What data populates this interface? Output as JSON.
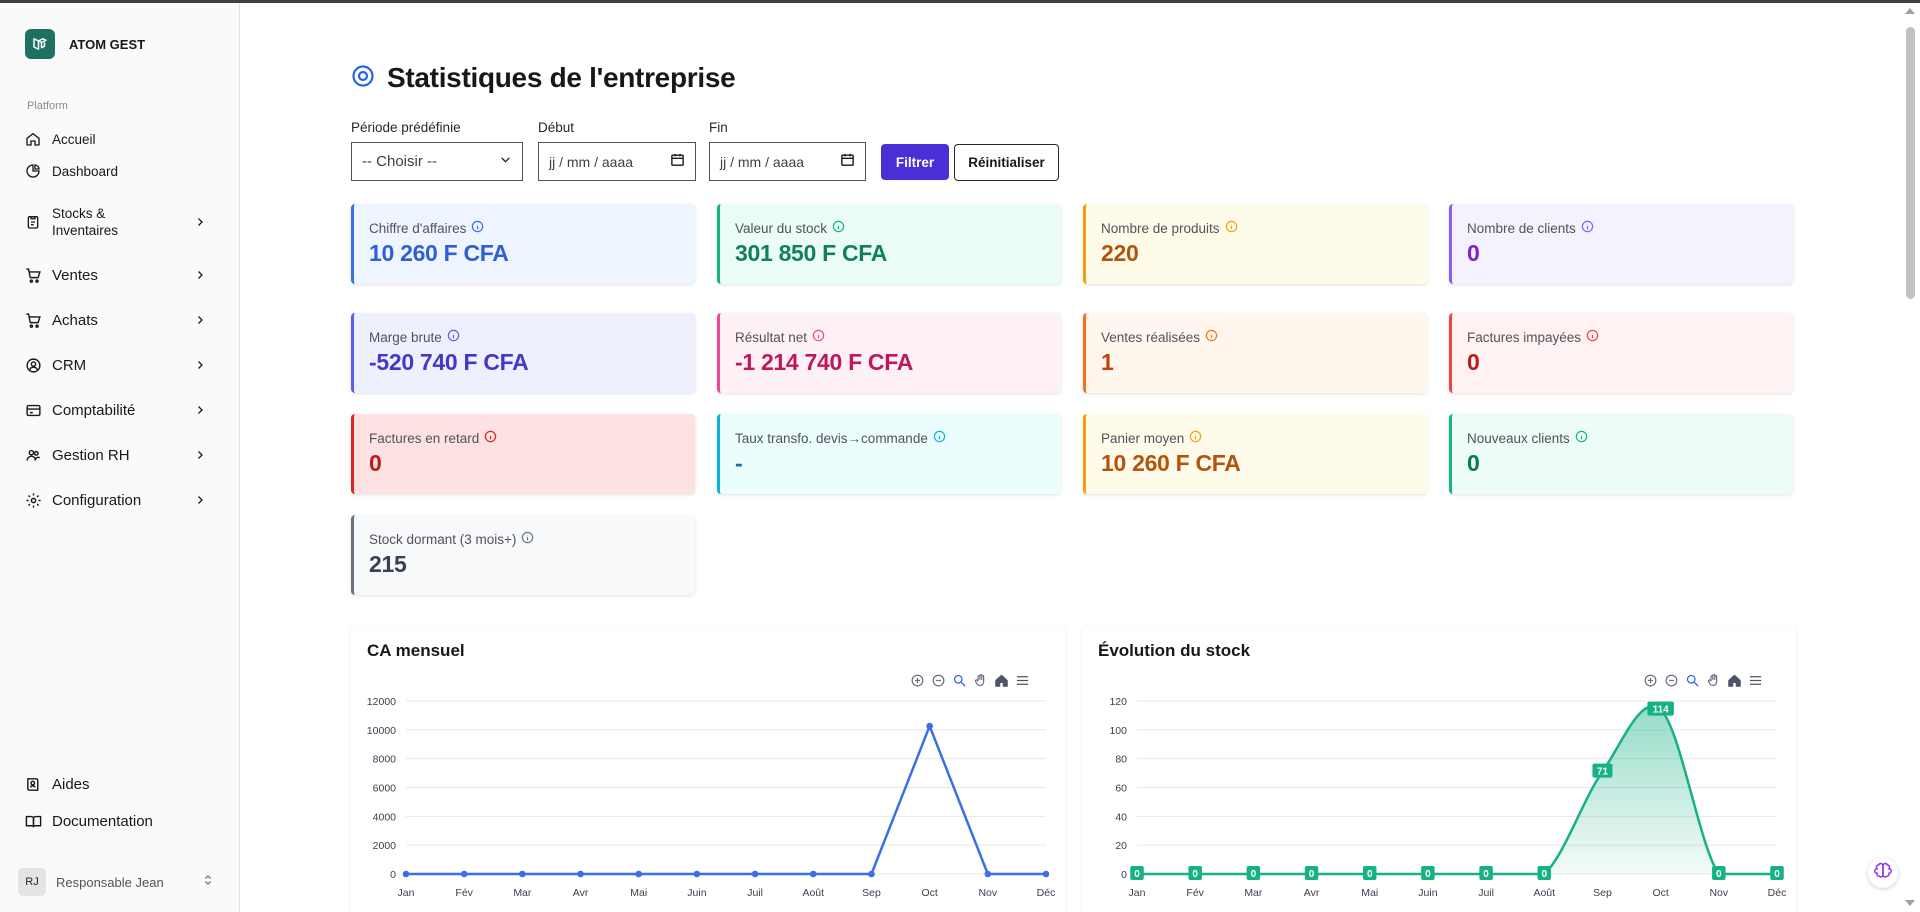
{
  "app": {
    "name": "ATOM GEST"
  },
  "sidebar": {
    "section": "Platform",
    "items": [
      {
        "label": "Accueil",
        "icon": "home-icon"
      },
      {
        "label": "Dashboard",
        "icon": "pie-chart-icon"
      },
      {
        "label": "Stocks &\nInventaires",
        "icon": "clipboard-icon"
      },
      {
        "label": "Ventes",
        "icon": "cart-icon"
      },
      {
        "label": "Achats",
        "icon": "cart-icon"
      },
      {
        "label": "CRM",
        "icon": "user-circle-icon"
      },
      {
        "label": "Comptabilité",
        "icon": "credit-card-icon"
      },
      {
        "label": "Gestion RH",
        "icon": "users-icon"
      },
      {
        "label": "Configuration",
        "icon": "gear-icon"
      }
    ],
    "bottom_items": [
      {
        "label": "Aides",
        "icon": "book-user-icon"
      },
      {
        "label": "Documentation",
        "icon": "open-book-icon"
      }
    ],
    "user": {
      "initials": "RJ",
      "name": "Responsable Jean"
    }
  },
  "page": {
    "title": "Statistiques de l'entreprise"
  },
  "filters": {
    "period_label": "Période prédéfinie",
    "period_value": "-- Choisir --",
    "start_label": "Début",
    "start_placeholder": "jj / mm / aaaa",
    "end_label": "Fin",
    "end_placeholder": "jj / mm / aaaa",
    "filter_button": "Filtrer",
    "reset_button": "Réinitialiser"
  },
  "stats": [
    {
      "label": "Chiffre d'affaires",
      "value": "10 260 F CFA",
      "bg": "#eef5ff",
      "accent": "#3b6ee8",
      "text": "#2f5fd6"
    },
    {
      "label": "Valeur du stock",
      "value": "301 850 F CFA",
      "bg": "#eafcf3",
      "accent": "#16b184",
      "text": "#13805c"
    },
    {
      "label": "Nombre de produits",
      "value": "220",
      "bg": "#fefbe9",
      "accent": "#f59e0b",
      "text": "#b45309"
    },
    {
      "label": "Nombre de clients",
      "value": "0",
      "bg": "#f3f2fd",
      "accent": "#8b5cf6",
      "text": "#7e22ce"
    },
    {
      "label": "Marge brute",
      "value": "-520 740 F CFA",
      "bg": "#eef1fd",
      "accent": "#5b5ee8",
      "text": "#4338ca"
    },
    {
      "label": "Résultat net",
      "value": "-1 214 740 F CFA",
      "bg": "#fdf1f6",
      "accent": "#ec4899",
      "text": "#be185d"
    },
    {
      "label": "Ventes réalisées",
      "value": "1",
      "bg": "#fff6ee",
      "accent": "#f97316",
      "text": "#c2410c"
    },
    {
      "label": "Factures impayées",
      "value": "0",
      "bg": "#fef2f2",
      "accent": "#ef4444",
      "text": "#b91c1c"
    },
    {
      "label": "Factures en retard",
      "value": "0",
      "bg": "#fee2e2",
      "accent": "#dc2626",
      "text": "#b91c1c"
    },
    {
      "label": "Taux transfo. devis→commande",
      "value": "-",
      "bg": "#ecfdfe",
      "accent": "#06b6d4",
      "text": "#0e7490"
    },
    {
      "label": "Panier moyen",
      "value": "10 260 F CFA",
      "bg": "#fffbeb",
      "accent": "#f59e0b",
      "text": "#b45309"
    },
    {
      "label": "Nouveaux clients",
      "value": "0",
      "bg": "#edfcf4",
      "accent": "#10b981",
      "text": "#047857"
    },
    {
      "label": "Stock dormant (3 mois+)",
      "value": "215",
      "bg": "#f8f9fa",
      "accent": "#6b7280",
      "text": "#374151"
    }
  ],
  "chart_data": [
    {
      "type": "line",
      "title": "CA mensuel",
      "categories": [
        "Jan",
        "Fév",
        "Mar",
        "Avr",
        "Mai",
        "Juin",
        "Juil",
        "Août",
        "Sep",
        "Oct",
        "Nov",
        "Déc"
      ],
      "values": [
        0,
        0,
        0,
        0,
        0,
        0,
        0,
        0,
        0,
        10260,
        0,
        0
      ],
      "ylim": [
        0,
        12000
      ],
      "yticks": [
        "0",
        "2000",
        "4000",
        "6000",
        "8000",
        "10000",
        "12000"
      ],
      "color": "#3b6ee8",
      "grid": true
    },
    {
      "type": "area",
      "title": "Évolution du stock",
      "categories": [
        "Jan",
        "Fév",
        "Mar",
        "Avr",
        "Mai",
        "Juin",
        "Juil",
        "Août",
        "Sep",
        "Oct",
        "Nov",
        "Déc"
      ],
      "values": [
        0,
        0,
        0,
        0,
        0,
        0,
        0,
        0,
        71,
        114,
        0,
        0
      ],
      "data_labels": [
        "0",
        "0",
        "0",
        "0",
        "0",
        "0",
        "0",
        "0",
        "71",
        "114",
        "0",
        "0"
      ],
      "ylim": [
        0,
        120
      ],
      "yticks": [
        "0",
        "20",
        "40",
        "60",
        "80",
        "100",
        "120"
      ],
      "color": "#16b184",
      "grid": true
    }
  ]
}
